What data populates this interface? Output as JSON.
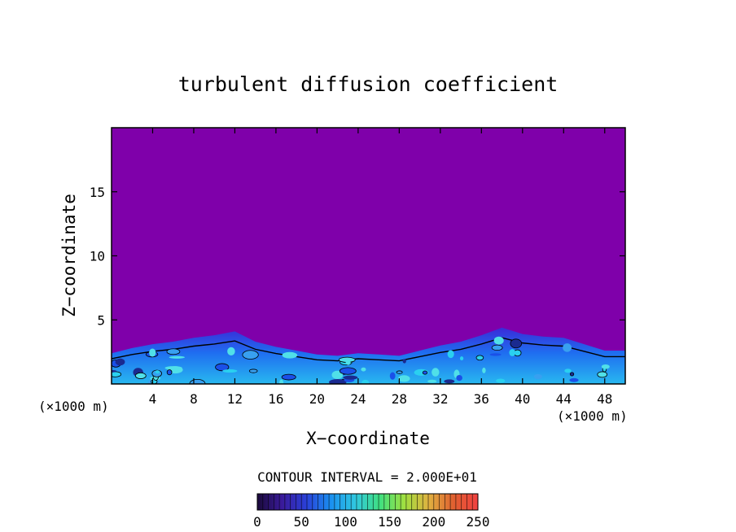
{
  "chart_data": {
    "type": "heatmap",
    "title": "turbulent diffusion coefficient",
    "xlabel": "X−coordinate",
    "ylabel": "Z−coordinate",
    "x_unit_left": "(×1000 m)",
    "x_unit_right": "(×1000 m)",
    "xlim": [
      0,
      50
    ],
    "ylim": [
      0,
      20
    ],
    "xticks": [
      4,
      8,
      12,
      16,
      20,
      24,
      28,
      32,
      36,
      40,
      44,
      48
    ],
    "yticks": [
      5,
      10,
      15
    ],
    "contour_interval_text": "CONTOUR INTERVAL = 2.000E+01",
    "colorbar": {
      "min": 0,
      "max": 250,
      "ticks": [
        0,
        50,
        100,
        150,
        200,
        250
      ],
      "colors": [
        "#1a0a3a",
        "#3a1a9a",
        "#2a40d8",
        "#1a90f0",
        "#30c8e0",
        "#40e080",
        "#a0e040",
        "#e0b040",
        "#e06030",
        "#f04040"
      ]
    },
    "background_color": "#7f00aa",
    "boundary_layer_top_profile": [
      [
        0,
        2.4
      ],
      [
        2,
        2.8
      ],
      [
        4,
        3.1
      ],
      [
        6,
        3.3
      ],
      [
        8,
        3.6
      ],
      [
        10,
        3.8
      ],
      [
        12,
        4.1
      ],
      [
        14,
        3.3
      ],
      [
        16,
        2.9
      ],
      [
        18,
        2.6
      ],
      [
        20,
        2.3
      ],
      [
        22,
        2.2
      ],
      [
        24,
        2.4
      ],
      [
        26,
        2.3
      ],
      [
        28,
        2.2
      ],
      [
        30,
        2.6
      ],
      [
        32,
        3.0
      ],
      [
        34,
        3.3
      ],
      [
        36,
        3.8
      ],
      [
        38,
        4.4
      ],
      [
        40,
        3.9
      ],
      [
        42,
        3.7
      ],
      [
        44,
        3.6
      ],
      [
        46,
        3.1
      ],
      [
        48,
        2.6
      ],
      [
        50,
        2.6
      ]
    ]
  }
}
